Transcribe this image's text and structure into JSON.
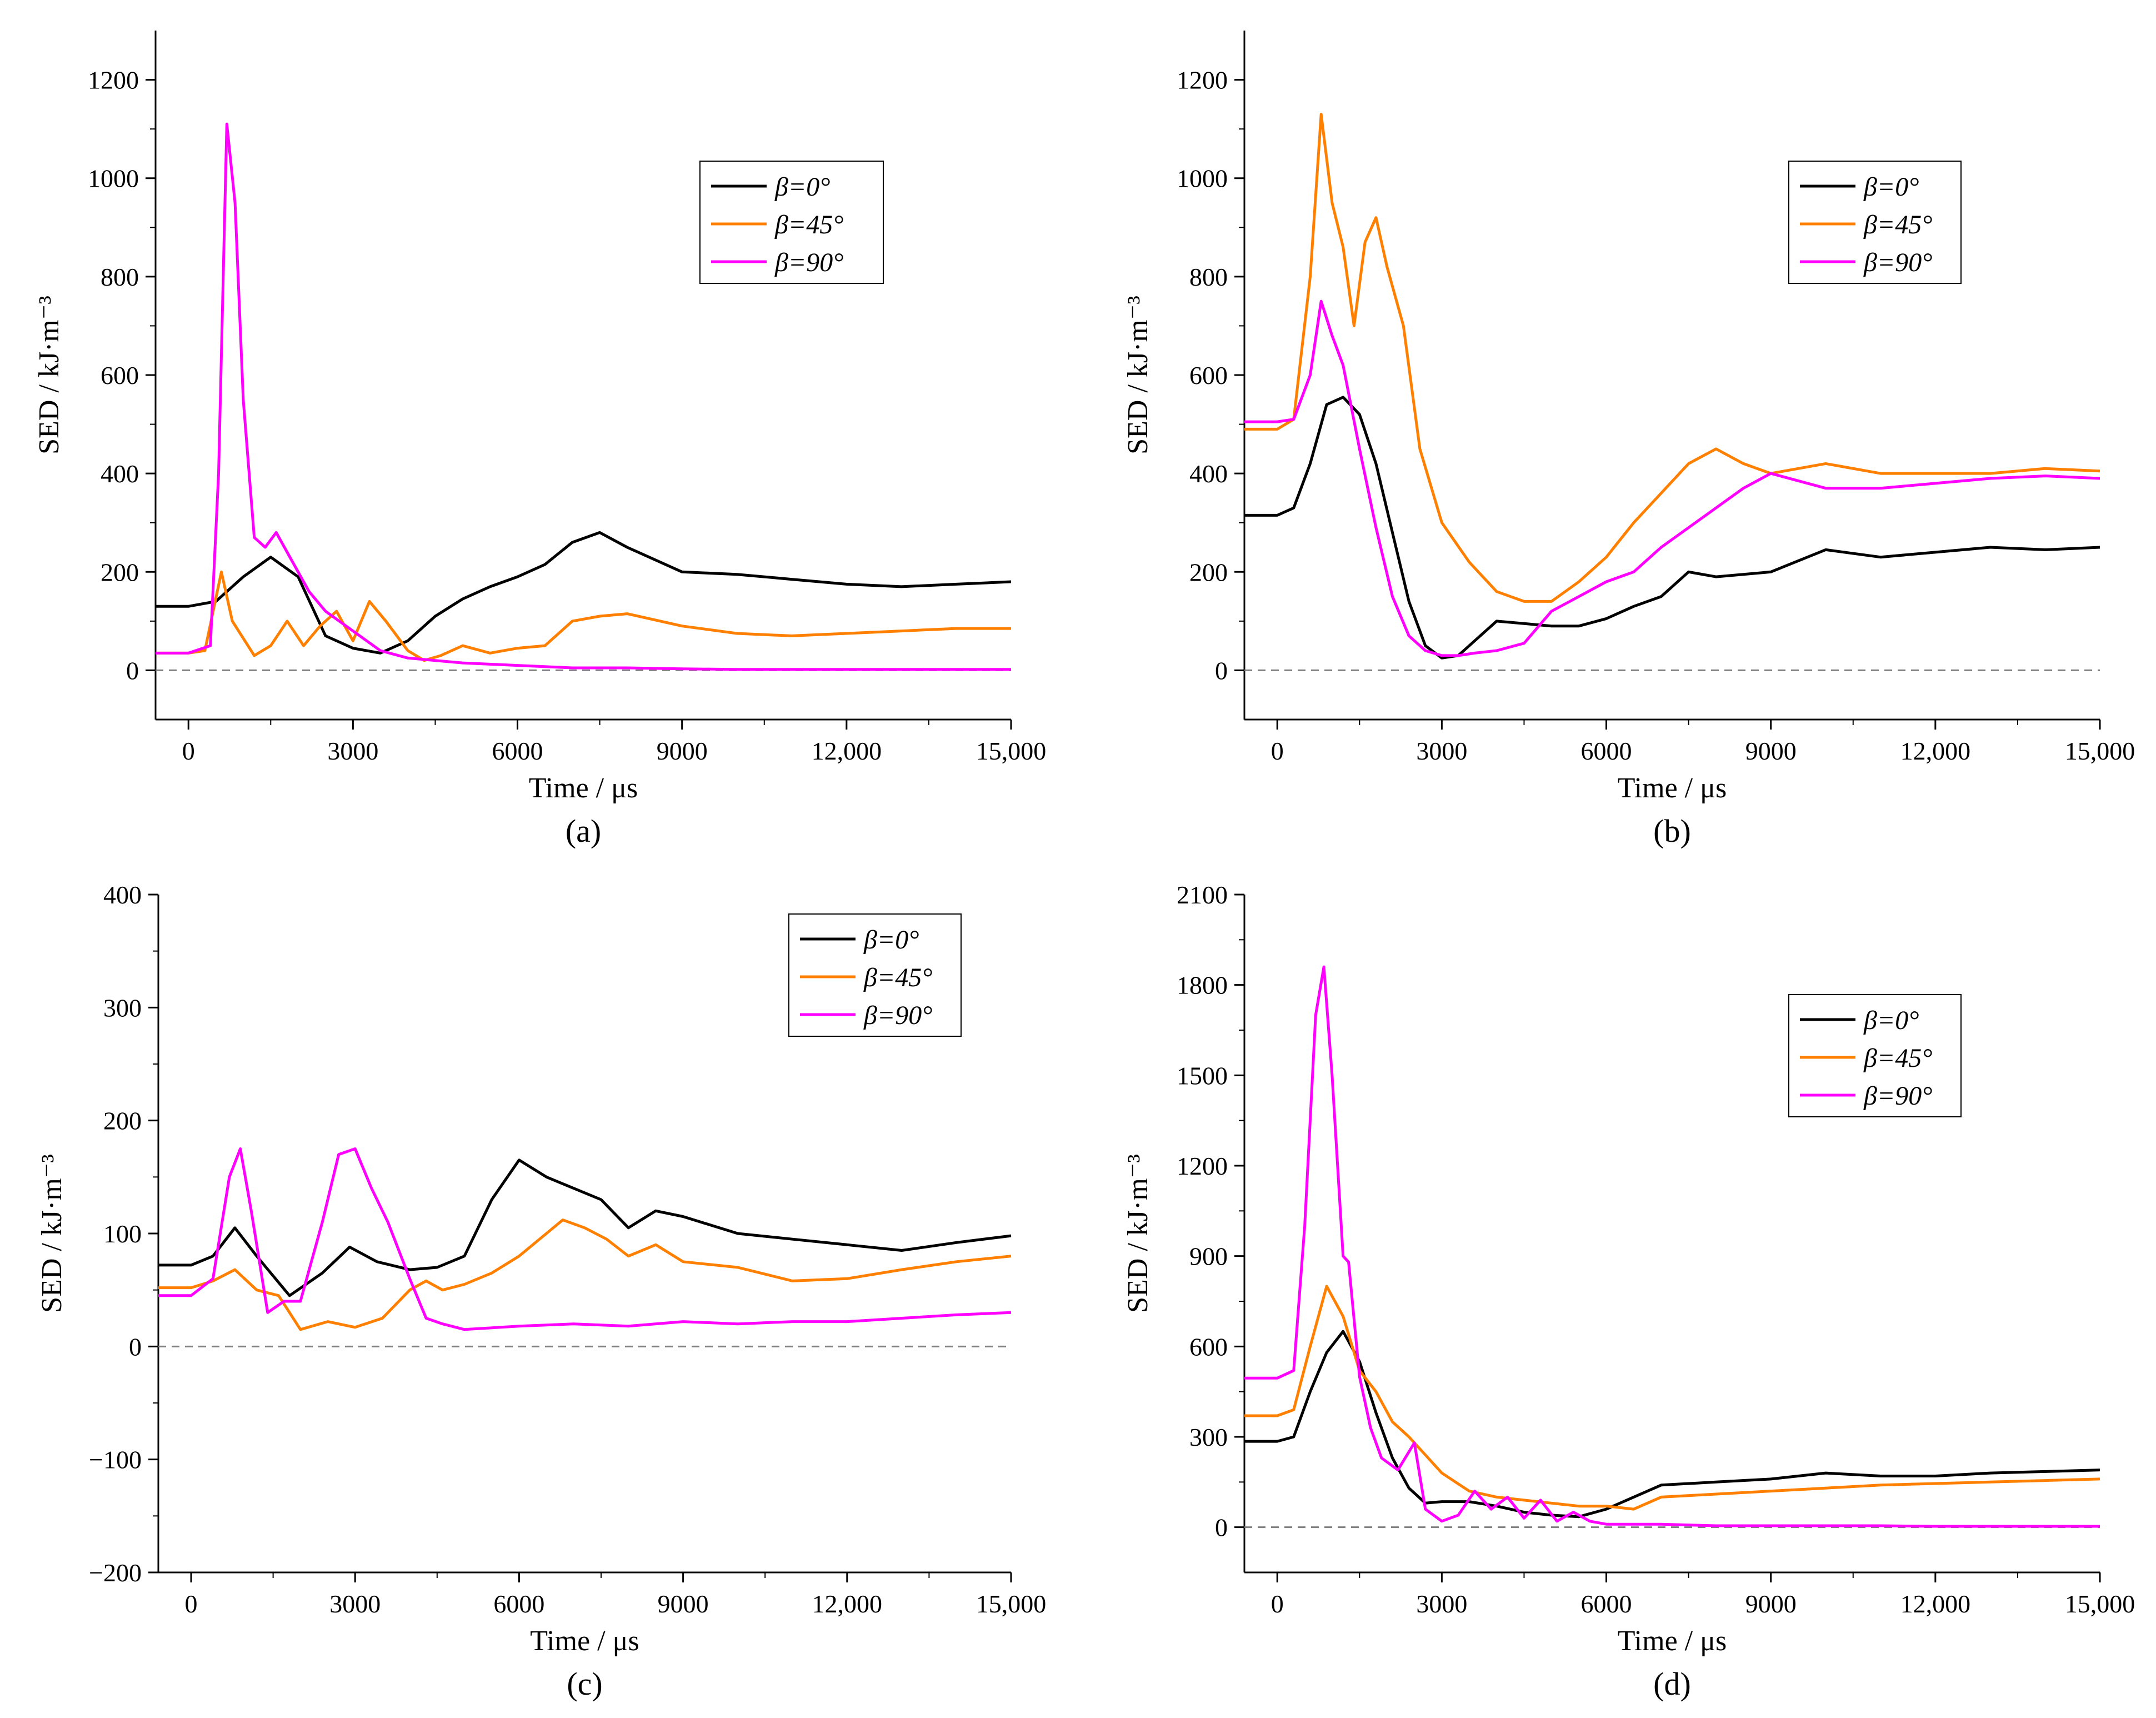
{
  "colors": {
    "beta0": "#000000",
    "beta45": "#ff8000",
    "beta90": "#ff00ff",
    "zero_line": "#808080"
  },
  "chart_data": [
    {
      "panel": "(a)",
      "type": "line",
      "xlabel": "Time / μs",
      "ylabel": "SED / kJ·m⁻³",
      "xlim": [
        -600,
        15000
      ],
      "ylim": [
        -100,
        1300
      ],
      "xticks": [
        0,
        3000,
        6000,
        9000,
        12000,
        15000
      ],
      "xtick_labels": [
        "0",
        "3000",
        "6000",
        "9000",
        "12,000",
        "15,000"
      ],
      "yticks": [
        0,
        200,
        400,
        600,
        800,
        1000,
        1200
      ],
      "ytick_labels": [
        "0",
        "200",
        "400",
        "600",
        "800",
        "1000",
        "1200"
      ],
      "zero_line": true,
      "legend_position": "upper-right",
      "series": [
        {
          "name": "β=0°",
          "color_key": "beta0",
          "x": [
            -600,
            0,
            500,
            1000,
            1500,
            2000,
            2500,
            3000,
            3500,
            4000,
            4500,
            5000,
            5500,
            6000,
            6500,
            7000,
            7500,
            8000,
            9000,
            10000,
            11000,
            12000,
            13000,
            14000,
            15000
          ],
          "y": [
            130,
            130,
            140,
            190,
            230,
            190,
            70,
            45,
            35,
            60,
            110,
            145,
            170,
            190,
            215,
            260,
            280,
            250,
            200,
            195,
            185,
            175,
            170,
            175,
            180
          ]
        },
        {
          "name": "β=45°",
          "color_key": "beta45",
          "x": [
            -600,
            0,
            300,
            600,
            800,
            1200,
            1500,
            1800,
            2100,
            2400,
            2700,
            3000,
            3300,
            3600,
            4000,
            4300,
            4600,
            5000,
            5500,
            6000,
            6500,
            7000,
            7500,
            8000,
            9000,
            10000,
            11000,
            12000,
            13000,
            14000,
            15000
          ],
          "y": [
            35,
            35,
            40,
            200,
            100,
            30,
            50,
            100,
            50,
            90,
            120,
            60,
            140,
            100,
            40,
            20,
            30,
            50,
            35,
            45,
            50,
            100,
            110,
            115,
            90,
            75,
            70,
            75,
            80,
            85,
            85
          ]
        },
        {
          "name": "β=90°",
          "color_key": "beta90",
          "x": [
            -600,
            0,
            400,
            550,
            700,
            850,
            1000,
            1200,
            1400,
            1600,
            1900,
            2200,
            2500,
            3000,
            3500,
            4000,
            4500,
            5000,
            6000,
            7000,
            8000,
            9000,
            10000,
            12000,
            15000
          ],
          "y": [
            35,
            35,
            50,
            400,
            1110,
            950,
            550,
            270,
            250,
            280,
            220,
            160,
            120,
            80,
            40,
            25,
            20,
            15,
            10,
            5,
            5,
            3,
            2,
            2,
            2
          ]
        }
      ]
    },
    {
      "panel": "(b)",
      "type": "line",
      "xlabel": "Time / μs",
      "ylabel": "SED / kJ·m⁻³",
      "xlim": [
        -600,
        15000
      ],
      "ylim": [
        -100,
        1300
      ],
      "xticks": [
        0,
        3000,
        6000,
        9000,
        12000,
        15000
      ],
      "xtick_labels": [
        "0",
        "3000",
        "6000",
        "9000",
        "12,000",
        "15,000"
      ],
      "yticks": [
        0,
        200,
        400,
        600,
        800,
        1000,
        1200
      ],
      "ytick_labels": [
        "0",
        "200",
        "400",
        "600",
        "800",
        "1000",
        "1200"
      ],
      "zero_line": true,
      "legend_position": "upper-right",
      "series": [
        {
          "name": "β=0°",
          "color_key": "beta0",
          "x": [
            -600,
            0,
            300,
            600,
            900,
            1200,
            1500,
            1800,
            2100,
            2400,
            2700,
            3000,
            3300,
            3600,
            4000,
            4500,
            5000,
            5500,
            6000,
            6500,
            7000,
            7500,
            8000,
            9000,
            10000,
            11000,
            12000,
            13000,
            14000,
            15000
          ],
          "y": [
            315,
            315,
            330,
            420,
            540,
            555,
            520,
            420,
            280,
            140,
            50,
            25,
            30,
            60,
            100,
            95,
            90,
            90,
            105,
            130,
            150,
            200,
            190,
            200,
            245,
            230,
            240,
            250,
            245,
            250
          ]
        },
        {
          "name": "β=45°",
          "color_key": "beta45",
          "x": [
            -600,
            0,
            300,
            600,
            800,
            1000,
            1200,
            1400,
            1600,
            1800,
            2000,
            2300,
            2600,
            3000,
            3500,
            4000,
            4500,
            5000,
            5500,
            6000,
            6500,
            7000,
            7500,
            8000,
            8500,
            9000,
            10000,
            11000,
            12000,
            13000,
            14000,
            15000
          ],
          "y": [
            490,
            490,
            510,
            800,
            1130,
            950,
            860,
            700,
            870,
            920,
            820,
            700,
            450,
            300,
            220,
            160,
            140,
            140,
            180,
            230,
            300,
            360,
            420,
            450,
            420,
            400,
            420,
            400,
            400,
            400,
            410,
            405
          ]
        },
        {
          "name": "β=90°",
          "color_key": "beta90",
          "x": [
            -600,
            0,
            300,
            600,
            800,
            1000,
            1200,
            1500,
            1800,
            2100,
            2400,
            2700,
            3000,
            3300,
            3600,
            4000,
            4500,
            5000,
            5500,
            6000,
            6500,
            7000,
            7500,
            8000,
            8500,
            9000,
            10000,
            11000,
            12000,
            13000,
            14000,
            15000
          ],
          "y": [
            505,
            505,
            510,
            600,
            750,
            680,
            620,
            450,
            290,
            150,
            70,
            40,
            30,
            30,
            35,
            40,
            55,
            120,
            150,
            180,
            200,
            250,
            290,
            330,
            370,
            400,
            370,
            370,
            380,
            390,
            395,
            390
          ]
        }
      ]
    },
    {
      "panel": "(c)",
      "type": "line",
      "xlabel": "Time / μs",
      "ylabel": "SED / kJ·m⁻³",
      "xlim": [
        -600,
        15000
      ],
      "ylim": [
        -200,
        400
      ],
      "xticks": [
        0,
        3000,
        6000,
        9000,
        12000,
        15000
      ],
      "xtick_labels": [
        "0",
        "3000",
        "6000",
        "9000",
        "12,000",
        "15,000"
      ],
      "yticks": [
        -200,
        -100,
        0,
        100,
        200,
        300,
        400
      ],
      "ytick_labels": [
        "−200",
        "−100",
        "0",
        "100",
        "200",
        "300",
        "400"
      ],
      "zero_line": true,
      "legend_position": "upper-right",
      "series": [
        {
          "name": "β=0°",
          "color_key": "beta0",
          "x": [
            -600,
            0,
            400,
            800,
            1200,
            1800,
            2400,
            2900,
            3400,
            4000,
            4500,
            5000,
            5500,
            6000,
            6500,
            7000,
            7500,
            8000,
            8500,
            9000,
            10000,
            11000,
            12000,
            13000,
            14000,
            15000
          ],
          "y": [
            72,
            72,
            80,
            105,
            80,
            45,
            65,
            88,
            75,
            68,
            70,
            80,
            130,
            165,
            150,
            140,
            130,
            105,
            120,
            115,
            100,
            95,
            90,
            85,
            92,
            98
          ]
        },
        {
          "name": "β=45°",
          "color_key": "beta45",
          "x": [
            -600,
            0,
            400,
            800,
            1200,
            1600,
            2000,
            2500,
            3000,
            3500,
            4000,
            4300,
            4600,
            5000,
            5500,
            6000,
            6500,
            6800,
            7200,
            7600,
            8000,
            8500,
            9000,
            10000,
            11000,
            12000,
            13000,
            14000,
            15000
          ],
          "y": [
            52,
            52,
            58,
            68,
            50,
            45,
            15,
            22,
            17,
            25,
            50,
            58,
            50,
            55,
            65,
            80,
            100,
            112,
            105,
            95,
            80,
            90,
            75,
            70,
            58,
            60,
            68,
            75,
            80
          ]
        },
        {
          "name": "β=90°",
          "color_key": "beta90",
          "x": [
            -600,
            0,
            400,
            700,
            900,
            1100,
            1400,
            1700,
            2000,
            2400,
            2700,
            3000,
            3300,
            3600,
            4000,
            4300,
            4600,
            5000,
            6000,
            7000,
            8000,
            9000,
            10000,
            11000,
            12000,
            13000,
            14000,
            15000
          ],
          "y": [
            45,
            45,
            60,
            150,
            175,
            120,
            30,
            40,
            40,
            110,
            170,
            175,
            140,
            110,
            60,
            25,
            20,
            15,
            18,
            20,
            18,
            22,
            20,
            22,
            22,
            25,
            28,
            30
          ]
        }
      ]
    },
    {
      "panel": "(d)",
      "type": "line",
      "xlabel": "Time / μs",
      "ylabel": "SED / kJ·m⁻³",
      "xlim": [
        -600,
        15000
      ],
      "ylim": [
        -150,
        2100
      ],
      "xticks": [
        0,
        3000,
        6000,
        9000,
        12000,
        15000
      ],
      "xtick_labels": [
        "0",
        "3000",
        "6000",
        "9000",
        "12,000",
        "15,000"
      ],
      "yticks": [
        0,
        300,
        600,
        900,
        1200,
        1500,
        1800,
        2100
      ],
      "ytick_labels": [
        "0",
        "300",
        "600",
        "900",
        "1200",
        "1500",
        "1800",
        "2100"
      ],
      "zero_line": true,
      "legend_position": "upper-right",
      "series": [
        {
          "name": "β=0°",
          "color_key": "beta0",
          "x": [
            -600,
            0,
            300,
            600,
            900,
            1200,
            1500,
            1800,
            2100,
            2400,
            2700,
            3000,
            3500,
            4000,
            4500,
            5000,
            5500,
            6000,
            6500,
            7000,
            8000,
            9000,
            10000,
            11000,
            12000,
            13000,
            14000,
            15000
          ],
          "y": [
            285,
            285,
            300,
            450,
            580,
            650,
            550,
            380,
            230,
            130,
            80,
            85,
            85,
            70,
            50,
            40,
            35,
            60,
            100,
            140,
            150,
            160,
            180,
            170,
            170,
            180,
            185,
            190
          ]
        },
        {
          "name": "β=45°",
          "color_key": "beta45",
          "x": [
            -600,
            0,
            300,
            600,
            900,
            1200,
            1500,
            1800,
            2100,
            2400,
            2700,
            3000,
            3500,
            4000,
            4500,
            5000,
            5500,
            6000,
            6500,
            7000,
            8000,
            9000,
            10000,
            11000,
            12000,
            13000,
            14000,
            15000
          ],
          "y": [
            370,
            370,
            390,
            600,
            800,
            700,
            520,
            450,
            350,
            300,
            240,
            180,
            120,
            100,
            90,
            80,
            70,
            70,
            60,
            100,
            110,
            120,
            130,
            140,
            145,
            150,
            155,
            160
          ]
        },
        {
          "name": "β=90°",
          "color_key": "beta90",
          "x": [
            -600,
            0,
            300,
            500,
            700,
            850,
            1000,
            1200,
            1300,
            1500,
            1700,
            1900,
            2200,
            2500,
            2700,
            3000,
            3300,
            3600,
            3900,
            4200,
            4500,
            4800,
            5100,
            5400,
            5700,
            6000,
            7000,
            8000,
            9000,
            10000,
            11000,
            12000,
            13000,
            15000
          ],
          "y": [
            495,
            495,
            520,
            1000,
            1700,
            1860,
            1500,
            900,
            880,
            500,
            330,
            230,
            190,
            280,
            60,
            20,
            40,
            120,
            60,
            100,
            30,
            90,
            20,
            50,
            20,
            10,
            10,
            5,
            5,
            5,
            5,
            3,
            3,
            3
          ]
        }
      ]
    }
  ]
}
